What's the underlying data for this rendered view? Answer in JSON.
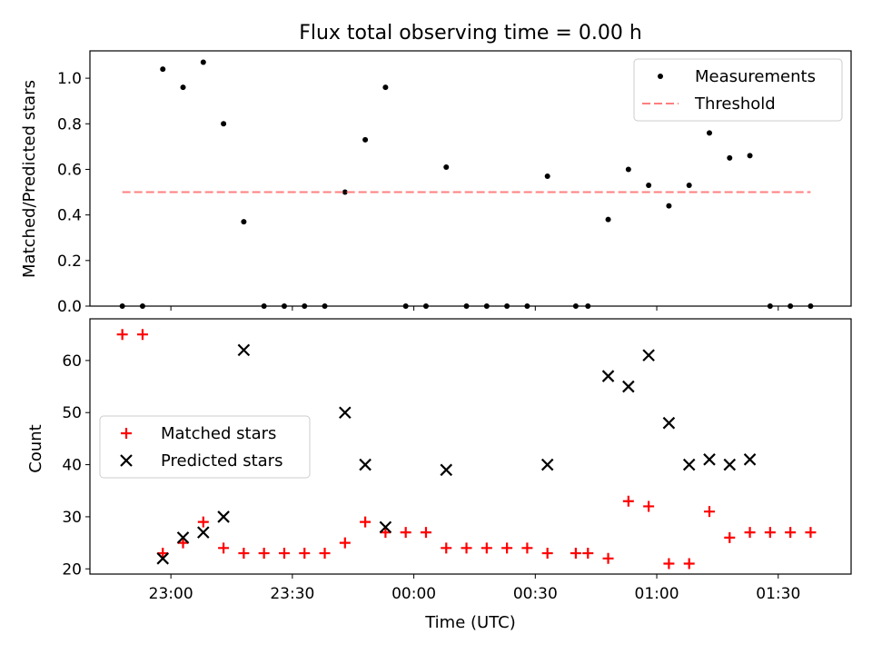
{
  "chart_data": [
    {
      "type": "scatter",
      "title": "Flux total observing time = 0.00 h",
      "ylabel": "Matched/Predicted stars",
      "xlabel": "",
      "xlim": [
        "22:40",
        "01:48"
      ],
      "ylim": [
        0,
        1.12
      ],
      "yticks": [
        "0.0",
        "0.2",
        "0.4",
        "0.6",
        "0.8",
        "1.0"
      ],
      "legend_position": "top-right",
      "series": [
        {
          "name": "Measurements",
          "style": "dot",
          "color": "#000000",
          "points": [
            [
              "22:48",
              0.0
            ],
            [
              "22:53",
              0.0
            ],
            [
              "22:58",
              1.04
            ],
            [
              "23:03",
              0.96
            ],
            [
              "23:08",
              1.07
            ],
            [
              "23:13",
              0.8
            ],
            [
              "23:18",
              0.37
            ],
            [
              "23:23",
              0.0
            ],
            [
              "23:28",
              0.0
            ],
            [
              "23:33",
              0.0
            ],
            [
              "23:38",
              0.0
            ],
            [
              "23:43",
              0.5
            ],
            [
              "23:48",
              0.73
            ],
            [
              "23:53",
              0.96
            ],
            [
              "23:58",
              0.0
            ],
            [
              "00:03",
              0.0
            ],
            [
              "00:08",
              0.61
            ],
            [
              "00:13",
              0.0
            ],
            [
              "00:18",
              0.0
            ],
            [
              "00:23",
              0.0
            ],
            [
              "00:28",
              0.0
            ],
            [
              "00:33",
              0.57
            ],
            [
              "00:40",
              0.0
            ],
            [
              "00:43",
              0.0
            ],
            [
              "00:48",
              0.38
            ],
            [
              "00:53",
              0.6
            ],
            [
              "00:58",
              0.53
            ],
            [
              "01:03",
              0.44
            ],
            [
              "01:08",
              0.53
            ],
            [
              "01:13",
              0.76
            ],
            [
              "01:18",
              0.65
            ],
            [
              "01:23",
              0.66
            ],
            [
              "01:28",
              0.0
            ],
            [
              "01:33",
              0.0
            ],
            [
              "01:38",
              0.0
            ]
          ]
        },
        {
          "name": "Threshold",
          "style": "dashed-line",
          "color": "#ff7f7f",
          "points": [
            [
              "22:48",
              0.5
            ],
            [
              "01:38",
              0.5
            ]
          ]
        }
      ]
    },
    {
      "type": "scatter",
      "title": "",
      "ylabel": "Count",
      "xlabel": "Time (UTC)",
      "xlim": [
        "22:40",
        "01:48"
      ],
      "ylim": [
        19,
        68
      ],
      "yticks": [
        "20",
        "30",
        "40",
        "50",
        "60"
      ],
      "xticks": [
        "23:00",
        "23:30",
        "00:00",
        "00:30",
        "01:00",
        "01:30"
      ],
      "legend_position": "center-left",
      "series": [
        {
          "name": "Matched stars",
          "style": "plus",
          "color": "#ff0000",
          "points": [
            [
              "22:48",
              65
            ],
            [
              "22:53",
              65
            ],
            [
              "22:58",
              23
            ],
            [
              "23:03",
              25
            ],
            [
              "23:08",
              29
            ],
            [
              "23:13",
              24
            ],
            [
              "23:18",
              23
            ],
            [
              "23:23",
              23
            ],
            [
              "23:28",
              23
            ],
            [
              "23:33",
              23
            ],
            [
              "23:38",
              23
            ],
            [
              "23:43",
              25
            ],
            [
              "23:48",
              29
            ],
            [
              "23:53",
              27
            ],
            [
              "23:58",
              27
            ],
            [
              "00:03",
              27
            ],
            [
              "00:08",
              24
            ],
            [
              "00:13",
              24
            ],
            [
              "00:18",
              24
            ],
            [
              "00:23",
              24
            ],
            [
              "00:28",
              24
            ],
            [
              "00:33",
              23
            ],
            [
              "00:40",
              23
            ],
            [
              "00:43",
              23
            ],
            [
              "00:48",
              22
            ],
            [
              "00:53",
              33
            ],
            [
              "00:58",
              32
            ],
            [
              "01:03",
              21
            ],
            [
              "01:08",
              21
            ],
            [
              "01:13",
              31
            ],
            [
              "01:18",
              26
            ],
            [
              "01:23",
              27
            ],
            [
              "01:28",
              27
            ],
            [
              "01:33",
              27
            ],
            [
              "01:38",
              27
            ]
          ]
        },
        {
          "name": "Predicted stars",
          "style": "x",
          "color": "#000000",
          "points": [
            [
              "22:58",
              22
            ],
            [
              "23:03",
              26
            ],
            [
              "23:08",
              27
            ],
            [
              "23:13",
              30
            ],
            [
              "23:18",
              62
            ],
            [
              "23:43",
              50
            ],
            [
              "23:48",
              40
            ],
            [
              "23:53",
              28
            ],
            [
              "00:08",
              39
            ],
            [
              "00:33",
              40
            ],
            [
              "00:48",
              57
            ],
            [
              "00:53",
              55
            ],
            [
              "00:58",
              61
            ],
            [
              "01:03",
              48
            ],
            [
              "01:08",
              40
            ],
            [
              "01:13",
              41
            ],
            [
              "01:18",
              40
            ],
            [
              "01:23",
              41
            ]
          ]
        }
      ]
    }
  ]
}
